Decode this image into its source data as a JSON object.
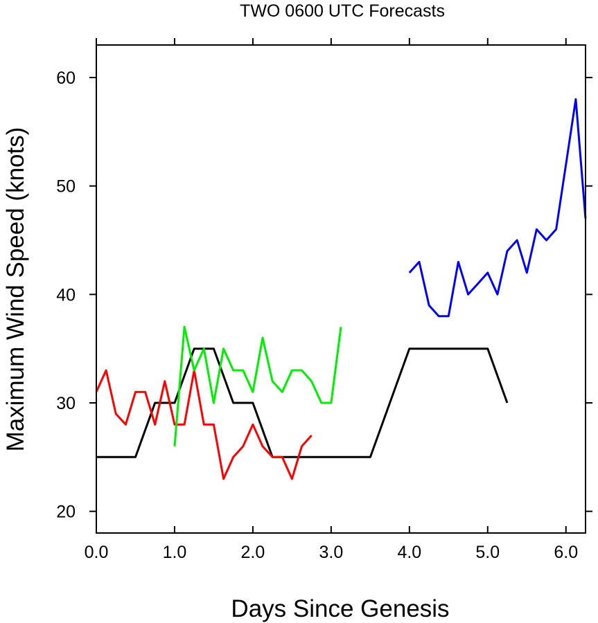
{
  "chart_data": {
    "type": "line",
    "title": "TWO 0600 UTC Forecasts",
    "xlabel": "Days Since Genesis",
    "ylabel": "Maximum Wind Speed (knots)",
    "xlim": [
      0,
      6.25
    ],
    "ylim": [
      18,
      63
    ],
    "x_ticks": [
      0,
      1,
      2,
      3,
      4,
      5,
      6
    ],
    "x_tick_labels": [
      "0.0",
      "1.0",
      "2.0",
      "3.0",
      "4.0",
      "5.0",
      "6.0"
    ],
    "y_ticks": [
      20,
      30,
      40,
      50,
      60
    ],
    "y_tick_labels": [
      "20",
      "30",
      "40",
      "50",
      "60"
    ],
    "grid": false,
    "legend": false,
    "series": [
      {
        "color": "#000000",
        "x": [
          0,
          0.5,
          0.75,
          1.0,
          1.25,
          1.5,
          1.75,
          2.0,
          2.25,
          2.5,
          2.75,
          3.0,
          3.25,
          3.5,
          4.0,
          4.25,
          4.5,
          4.75,
          5.0,
          5.25
        ],
        "y": [
          25,
          25,
          30,
          30,
          35,
          35,
          30,
          30,
          25,
          25,
          25,
          25,
          25,
          25,
          35,
          35,
          35,
          35,
          35,
          30
        ]
      },
      {
        "color": "#ff0000",
        "x": [
          0,
          0.125,
          0.25,
          0.375,
          0.5,
          0.625,
          0.75,
          0.875,
          1.0,
          1.125,
          1.25,
          1.375,
          1.5,
          1.625,
          1.75,
          1.875,
          2.0,
          2.125,
          2.25,
          2.375,
          2.5,
          2.625,
          2.75
        ],
        "y": [
          31,
          33,
          29,
          28,
          31,
          31,
          28,
          32,
          28,
          28,
          33,
          28,
          28,
          23,
          25,
          26,
          28,
          26,
          25,
          25,
          23,
          26,
          27
        ]
      },
      {
        "color": "#00ee00",
        "x": [
          1.0,
          1.125,
          1.25,
          1.375,
          1.5,
          1.625,
          1.75,
          1.875,
          2.0,
          2.125,
          2.25,
          2.375,
          2.5,
          2.625,
          2.75,
          2.875,
          3.0,
          3.125
        ],
        "y": [
          26,
          37,
          33,
          35,
          30,
          35,
          33,
          33,
          31,
          36,
          32,
          31,
          33,
          33,
          32,
          30,
          30,
          37
        ]
      },
      {
        "color": "#0000ff",
        "x": [
          4.0,
          4.125,
          4.25,
          4.375,
          4.5,
          4.625,
          4.75,
          4.875,
          5.0,
          5.125,
          5.25,
          5.375,
          5.5,
          5.625,
          5.75,
          5.875,
          6.0,
          6.125,
          6.25
        ],
        "y": [
          42,
          43,
          39,
          38,
          38,
          43,
          40,
          41,
          42,
          40,
          44,
          45,
          42,
          46,
          45,
          46,
          52,
          58,
          47
        ]
      }
    ]
  }
}
